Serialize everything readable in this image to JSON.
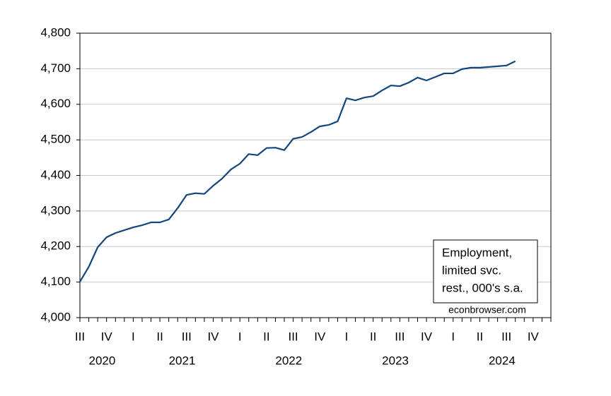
{
  "chart_data": {
    "type": "line",
    "categories": [
      "III",
      null,
      null,
      "IV",
      null,
      null,
      "I",
      null,
      null,
      "II",
      null,
      null,
      "III",
      null,
      null,
      "IV",
      null,
      null,
      "I",
      null,
      null,
      "II",
      null,
      null,
      "III",
      null,
      null,
      "IV",
      null,
      null,
      "I",
      null,
      null,
      "II",
      null,
      null,
      "III",
      null,
      null,
      "IV",
      null,
      null,
      "I",
      null,
      null,
      "II",
      null,
      null,
      "III",
      null,
      null,
      "IV",
      null,
      null
    ],
    "groups": [
      "2020",
      "2021",
      "2022",
      "2023",
      "2024"
    ],
    "series": [
      {
        "color": "#12467d",
        "values": [
          4101,
          4143,
          4198,
          4226,
          4238,
          4246,
          4254,
          4260,
          4268,
          4268,
          4276,
          4308,
          4345,
          4350,
          4348,
          4371,
          4391,
          4417,
          4433,
          4460,
          4457,
          4477,
          4478,
          4471,
          4503,
          4508,
          4522,
          4538,
          4542,
          4552,
          4617,
          4611,
          4619,
          4623,
          4639,
          4653,
          4651,
          4661,
          4675,
          4667,
          4677,
          4687,
          4687,
          4699,
          4703,
          4703,
          4705,
          4707,
          4709,
          4721,
          null,
          null,
          null,
          null
        ]
      }
    ],
    "ylim": [
      4000,
      4800
    ],
    "yticks": [
      {
        "value": 4000,
        "label": "4,000"
      },
      {
        "value": 4100,
        "label": "4,100"
      },
      {
        "value": 4200,
        "label": "4,200"
      },
      {
        "value": 4300,
        "label": "4,300"
      },
      {
        "value": 4400,
        "label": "4,400"
      },
      {
        "value": 4500,
        "label": "4,500"
      },
      {
        "value": 4600,
        "label": "4,600"
      },
      {
        "value": 4700,
        "label": "4,700"
      },
      {
        "value": 4800,
        "label": "4,800"
      }
    ],
    "grid": true,
    "annotation": [
      "Employment,",
      "limited svc.",
      "rest., 000's s.a."
    ],
    "source": "econbrowser.com"
  }
}
